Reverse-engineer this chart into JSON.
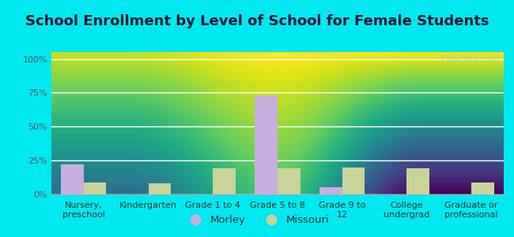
{
  "title": "School Enrollment by Level of School for Female Students",
  "categories": [
    "Nursery,\npreschool",
    "Kindergarten",
    "Grade 1 to 4",
    "Grade 5 to 8",
    "Grade 9 to\n12",
    "College\nundergrad",
    "Graduate or\nprofessional"
  ],
  "morley_values": [
    22,
    0,
    0,
    73,
    5,
    0,
    0
  ],
  "missouri_values": [
    9,
    8,
    19,
    19,
    20,
    19,
    9
  ],
  "morley_color": "#c9aee0",
  "missouri_color": "#c8d49a",
  "background_outer": "#00e8f0",
  "background_inner_top": "#f5fff5",
  "background_inner_bottom": "#d8efc0",
  "yticks": [
    0,
    25,
    50,
    75,
    100
  ],
  "ytick_labels": [
    "0%",
    "25%",
    "50%",
    "75%",
    "100%"
  ],
  "ylim": [
    0,
    105
  ],
  "bar_width": 0.35,
  "legend_labels": [
    "Morley",
    "Missouri"
  ],
  "watermark": "City-Data.com",
  "title_fontsize": 13,
  "tick_fontsize": 8,
  "legend_fontsize": 9.5
}
